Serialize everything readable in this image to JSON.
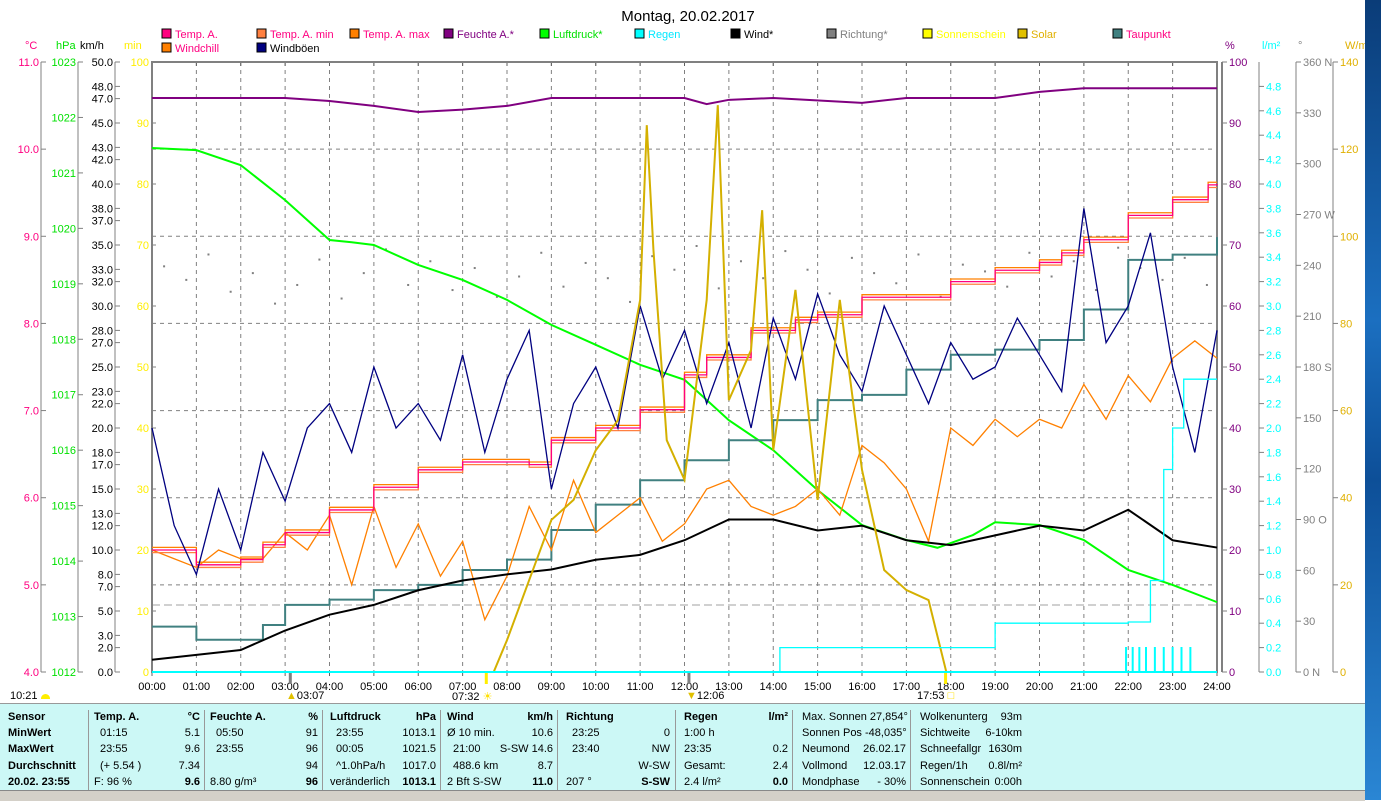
{
  "title": "Montag, 20.02.2017",
  "legend": [
    {
      "label": "Temp. A.",
      "swatch": "#ff0080",
      "text": "#ff0080"
    },
    {
      "label": "Temp. A. min",
      "swatch": "#ff8040",
      "text": "#ff0080"
    },
    {
      "label": "Temp. A. max",
      "swatch": "#ff8000",
      "text": "#ff0080"
    },
    {
      "label": "Feuchte A.*",
      "swatch": "#800080",
      "text": "#800080"
    },
    {
      "label": "Luftdruck*",
      "swatch": "#00ff00",
      "text": "#00e000"
    },
    {
      "label": "Regen",
      "swatch": "#00ffff",
      "text": "#00e8ff"
    },
    {
      "label": "Wind*",
      "swatch": "#000000",
      "text": "#000000"
    },
    {
      "label": "Richtung*",
      "swatch": "#808080",
      "text": "#808080"
    },
    {
      "label": "Sonnenschein",
      "swatch": "#ffff00",
      "text": "#ffff00"
    },
    {
      "label": "Solar",
      "swatch": "#e0c000",
      "text": "#e0b000"
    },
    {
      "label": "Taupunkt",
      "swatch": "#408080",
      "text": "#ff0080"
    },
    {
      "label": "Windchill",
      "swatch": "#ff8000",
      "text": "#ff0080"
    },
    {
      "label": "Windböen",
      "swatch": "#000080",
      "text": "#000000"
    }
  ],
  "chart_data": {
    "type": "line",
    "title": "Montag, 20.02.2017",
    "xlabel": "",
    "xlim": [
      0,
      24
    ],
    "x_ticks": [
      "00:00",
      "01:00",
      "02:00",
      "03:00",
      "04:00",
      "05:00",
      "06:00",
      "07:00",
      "08:00",
      "09:00",
      "10:00",
      "11:00",
      "12:00",
      "13:00",
      "14:00",
      "15:00",
      "16:00",
      "17:00",
      "18:00",
      "19:00",
      "20:00",
      "21:00",
      "22:00",
      "23:00",
      "24:00"
    ],
    "grid": true,
    "axes": {
      "C": {
        "unit": "°C",
        "range": [
          4,
          11
        ],
        "ticks": [
          "4.0",
          "5.0",
          "6.0",
          "7.0",
          "8.0",
          "9.0",
          "10.0",
          "11.0"
        ],
        "color": "#ff0080"
      },
      "hPa": {
        "unit": "hPa",
        "range": [
          1012,
          1023
        ],
        "ticks": [
          "1012",
          "1013",
          "1014",
          "1015",
          "1016",
          "1017",
          "1018",
          "1019",
          "1020",
          "1021",
          "1022",
          "1023"
        ],
        "color": "#00e000"
      },
      "kmh": {
        "unit": "km/h",
        "range": [
          0,
          50
        ],
        "ticks": [
          "0.0",
          "2.0",
          "3.0",
          "5.0",
          "7.0",
          "8.0",
          "10.0",
          "12.0",
          "13.0",
          "15.0",
          "17.0",
          "18.0",
          "20.0",
          "22.0",
          "23.0",
          "25.0",
          "27.0",
          "28.0",
          "30.0",
          "32.0",
          "33.0",
          "35.0",
          "37.0",
          "38.0",
          "40.0",
          "42.0",
          "43.0",
          "45.0",
          "47.0",
          "48.0",
          "50.0"
        ],
        "color": "#000000"
      },
      "min": {
        "unit": "min",
        "range": [
          0,
          100
        ],
        "ticks": [
          "0",
          "10",
          "20",
          "30",
          "40",
          "50",
          "60",
          "70",
          "80",
          "90",
          "100"
        ],
        "color": "#ffff00"
      },
      "pct": {
        "unit": "%",
        "range": [
          0,
          100
        ],
        "ticks": [
          "0",
          "10",
          "20",
          "30",
          "40",
          "50",
          "60",
          "70",
          "80",
          "90",
          "100"
        ],
        "color": "#800080"
      },
      "rain": {
        "unit": "l/m²",
        "range": [
          0,
          5
        ],
        "ticks": [
          "0.0",
          "0.2",
          "0.4",
          "0.6",
          "0.8",
          "1.0",
          "1.2",
          "1.4",
          "1.6",
          "1.8",
          "2.0",
          "2.2",
          "2.4",
          "2.6",
          "2.8",
          "3.0",
          "3.2",
          "3.4",
          "3.6",
          "3.8",
          "4.0",
          "4.2",
          "4.4",
          "4.6",
          "4.8"
        ],
        "color": "#00ffff"
      },
      "deg": {
        "unit": "°",
        "range": [
          0,
          360
        ],
        "ticks": [
          "0   N",
          "30",
          "60",
          "90  O",
          "120",
          "150",
          "180 S",
          "210",
          "240",
          "270 W",
          "300",
          "330",
          "360 N"
        ],
        "color": "#808080"
      },
      "wm2": {
        "unit": "W/m²",
        "range": [
          0,
          140
        ],
        "ticks": [
          "0",
          "20",
          "40",
          "60",
          "80",
          "100",
          "120",
          "140"
        ],
        "color": "#e0b000"
      }
    },
    "series": [
      {
        "name": "Luftdruck*",
        "axis": "hPa",
        "color": "#00ff00",
        "x": [
          0,
          1,
          2,
          3,
          4,
          4.5,
          5,
          6,
          7,
          8,
          9,
          10,
          11,
          12,
          13,
          14,
          15,
          16,
          17,
          17.7,
          18.5,
          19,
          20,
          21,
          22,
          23,
          24
        ],
        "values": [
          1021.45,
          1021.41,
          1021.14,
          1020.51,
          1019.79,
          1019.75,
          1019.7,
          1019.34,
          1019.07,
          1018.71,
          1018.26,
          1017.9,
          1017.54,
          1017.27,
          1016.54,
          1016.0,
          1015.28,
          1014.65,
          1014.38,
          1014.24,
          1014.47,
          1014.7,
          1014.65,
          1014.38,
          1013.84,
          1013.57,
          1013.26
        ]
      },
      {
        "name": "Feuchte A.*",
        "axis": "pct",
        "color": "#800080",
        "x": [
          0,
          3,
          4,
          5,
          6,
          7,
          8,
          9,
          12,
          12.5,
          13,
          14,
          16,
          17,
          19,
          20,
          21,
          24
        ],
        "values": [
          94.1,
          94.1,
          93.6,
          92.8,
          91.8,
          92.2,
          92.8,
          94.1,
          94.1,
          93.1,
          93.8,
          94.1,
          93.3,
          94.1,
          94.1,
          95.1,
          95.7,
          95.7
        ]
      },
      {
        "name": "Taupunkt",
        "axis": "C",
        "color": "#408080",
        "step": true,
        "x": [
          0,
          1,
          2,
          2.5,
          3,
          4,
          5,
          6,
          7,
          8,
          9,
          10,
          11,
          12,
          13,
          14,
          15,
          16,
          17,
          18,
          19,
          20,
          21,
          22,
          23,
          24
        ],
        "values": [
          4.52,
          4.37,
          4.37,
          4.54,
          4.77,
          4.83,
          4.94,
          5.0,
          5.17,
          5.29,
          5.63,
          5.92,
          6.2,
          6.43,
          6.66,
          6.89,
          7.12,
          7.18,
          7.47,
          7.64,
          7.7,
          7.81,
          8.16,
          8.73,
          8.79,
          8.99
        ]
      },
      {
        "name": "Windchill",
        "axis": "C",
        "color": "#ff8000",
        "x": [
          0,
          0.5,
          1,
          1.5,
          2,
          2.5,
          3,
          3.5,
          4,
          4.5,
          5,
          5.5,
          6,
          6.5,
          7,
          7.5,
          8,
          8.5,
          9,
          9.5,
          10,
          10.5,
          11,
          11.5,
          12,
          12.5,
          13,
          13.5,
          14,
          14.5,
          15,
          15.5,
          16,
          16.5,
          17,
          17.5,
          18,
          18.5,
          19,
          19.5,
          20,
          20.5,
          21,
          21.5,
          22,
          22.5,
          23,
          23.5,
          24
        ],
        "values": [
          5.4,
          5.3,
          5.2,
          5.4,
          5.3,
          5.3,
          5.6,
          5.4,
          5.8,
          5.0,
          5.9,
          5.2,
          5.7,
          5.1,
          5.5,
          4.6,
          5.1,
          5.9,
          5.4,
          6.2,
          5.6,
          5.8,
          6.0,
          5.5,
          5.7,
          6.1,
          6.2,
          5.9,
          5.8,
          5.9,
          6.1,
          5.8,
          6.6,
          6.4,
          6.1,
          5.5,
          6.8,
          6.6,
          6.9,
          6.7,
          6.9,
          6.8,
          7.3,
          6.9,
          7.4,
          7.1,
          7.6,
          7.8,
          7.6
        ]
      },
      {
        "name": "Temp. A. min",
        "axis": "C",
        "color": "#ff8040",
        "step": true,
        "x": [
          0,
          1,
          1.5,
          2,
          2.5,
          3,
          4,
          5,
          6,
          7,
          7.5,
          8.5,
          9,
          10,
          11,
          12,
          12.5,
          13.5,
          14.5,
          15,
          16,
          17,
          18,
          19,
          20,
          20.5,
          21,
          22,
          23,
          23.8,
          24
        ],
        "values": [
          5.37,
          5.2,
          5.2,
          5.26,
          5.43,
          5.57,
          5.83,
          6.09,
          6.29,
          6.38,
          6.38,
          6.35,
          6.63,
          6.77,
          6.98,
          7.38,
          7.58,
          7.89,
          8.01,
          8.07,
          8.27,
          8.27,
          8.45,
          8.58,
          8.67,
          8.78,
          8.93,
          9.21,
          9.39,
          9.56,
          9.56
        ]
      },
      {
        "name": "Temp. A. max",
        "axis": "C",
        "color": "#ff8000",
        "step": true,
        "x": [
          0,
          1,
          1.5,
          2,
          2.5,
          3,
          4,
          5,
          6,
          7,
          7.5,
          8.5,
          9,
          10,
          11,
          12,
          12.5,
          13.5,
          14.5,
          15,
          16,
          17,
          18,
          19,
          20,
          20.5,
          21,
          22,
          23,
          23.8,
          24
        ],
        "values": [
          5.43,
          5.26,
          5.26,
          5.32,
          5.49,
          5.63,
          5.89,
          6.15,
          6.35,
          6.44,
          6.44,
          6.41,
          6.69,
          6.83,
          7.04,
          7.44,
          7.64,
          7.95,
          8.07,
          8.13,
          8.33,
          8.33,
          8.51,
          8.64,
          8.73,
          8.84,
          8.99,
          9.27,
          9.45,
          9.62,
          9.62
        ]
      },
      {
        "name": "Temp. A.",
        "axis": "C",
        "color": "#ff0080",
        "step": true,
        "x": [
          0,
          1,
          1.5,
          2,
          2.5,
          3,
          4,
          5,
          6,
          7,
          7.5,
          8.5,
          9,
          10,
          11,
          12,
          12.5,
          13.5,
          14.5,
          15,
          16,
          17,
          18,
          19,
          20,
          20.5,
          21,
          22,
          23,
          23.8,
          24
        ],
        "values": [
          5.4,
          5.23,
          5.23,
          5.29,
          5.46,
          5.6,
          5.86,
          6.12,
          6.32,
          6.41,
          6.41,
          6.38,
          6.66,
          6.8,
          7.01,
          7.41,
          7.61,
          7.92,
          8.04,
          8.1,
          8.3,
          8.3,
          8.48,
          8.61,
          8.7,
          8.81,
          8.96,
          9.24,
          9.42,
          9.59,
          9.6
        ]
      },
      {
        "name": "Windböen",
        "axis": "kmh",
        "color": "#000080",
        "x": [
          0,
          0.5,
          1,
          1.5,
          2,
          2.5,
          3,
          3.5,
          4,
          4.5,
          5,
          5.5,
          6,
          6.5,
          7,
          7.5,
          8,
          8.5,
          9,
          9.5,
          10,
          10.5,
          11,
          11.5,
          12,
          12.5,
          13,
          13.5,
          14,
          14.5,
          15,
          15.5,
          16,
          16.5,
          17,
          17.5,
          18,
          18.5,
          19,
          19.5,
          20,
          20.5,
          21,
          21.5,
          22,
          22.5,
          23,
          23.5,
          24
        ],
        "values": [
          20,
          12,
          8,
          15,
          10,
          18,
          14,
          20,
          22,
          18,
          25,
          20,
          22,
          19,
          26,
          18,
          24,
          28,
          15,
          22,
          25,
          20,
          30,
          24,
          28,
          22,
          27,
          20,
          29,
          24,
          31,
          26,
          23,
          30,
          26,
          22,
          27,
          24,
          25,
          29,
          26,
          23,
          38,
          27,
          30,
          36,
          25,
          18,
          28
        ]
      },
      {
        "name": "Wind*",
        "axis": "kmh",
        "color": "#000000",
        "x": [
          0,
          1,
          2,
          3,
          4,
          5,
          6,
          7,
          8,
          9,
          10,
          11,
          12,
          13,
          14,
          15,
          16,
          17,
          18,
          19,
          20,
          21,
          22,
          23,
          24
        ],
        "values": [
          1.0,
          1.4,
          1.8,
          3.4,
          4.7,
          5.5,
          6.7,
          7.5,
          8.0,
          8.4,
          9.2,
          9.6,
          10.8,
          12.5,
          12.5,
          11.6,
          12.0,
          10.8,
          10.4,
          11.2,
          12.0,
          11.6,
          13.3,
          10.8,
          10.2
        ]
      },
      {
        "name": "Solar",
        "axis": "wm2",
        "color": "#d4b000",
        "x": [
          0,
          7.7,
          8,
          8.5,
          9,
          9.5,
          10,
          10.5,
          11,
          11.15,
          11.3,
          11.6,
          12,
          12.5,
          12.75,
          13,
          13.5,
          13.75,
          14,
          14.5,
          15,
          15.5,
          16,
          16.5,
          17,
          17.5,
          17.9,
          24
        ],
        "values": [
          0,
          0,
          7.3,
          21.1,
          34.9,
          39.5,
          50.9,
          57.8,
          85.4,
          125.5,
          96.9,
          53.2,
          44.1,
          85.4,
          130.1,
          62.4,
          73.9,
          106,
          50.9,
          87.7,
          39.5,
          85.4,
          46.4,
          23.4,
          18.8,
          16.5,
          0,
          0
        ]
      },
      {
        "name": "Regen",
        "axis": "rain",
        "color": "#00ffff",
        "step": true,
        "x": [
          0,
          14.15,
          19,
          22,
          22.5,
          22.8,
          23,
          23.25,
          24
        ],
        "values": [
          0,
          0.2,
          0.4,
          0.41,
          0.75,
          1.66,
          2.0,
          2.4,
          2.4
        ]
      }
    ],
    "rain_bars_hours": [
      21.95,
      22.1,
      22.25,
      22.4,
      22.6,
      22.8,
      23.0,
      23.2,
      23.4
    ],
    "richtung_deg": [
      240,
      232,
      247,
      225,
      236,
      218,
      229,
      244,
      221,
      236,
      250,
      229,
      243,
      226,
      239,
      222,
      234,
      248,
      228,
      242,
      233,
      219,
      246,
      238,
      252,
      227,
      243,
      233,
      249,
      238,
      224,
      245,
      236,
      230,
      247,
      222,
      241,
      237,
      228,
      248,
      234,
      243,
      226,
      251,
      239,
      232,
      245,
      229
    ]
  },
  "sun_markers": {
    "moon": "10:21",
    "m1": "03:07",
    "sunrise": "07:32",
    "noon": "12:06",
    "sunset": "17:53"
  },
  "table": {
    "sensor": [
      "Sensor",
      "MinWert",
      "MaxWert",
      "Durchschnitt",
      "20.02. 23:55"
    ],
    "temp": {
      "head": "Temp. A.",
      "unit": "°C",
      "a": [
        "01:15",
        "23:55",
        "(+ 5.54 )",
        "F: 96 %"
      ],
      "b": [
        "5.1",
        "9.6",
        "7.34",
        "9.6"
      ]
    },
    "feuchte": {
      "head": "Feuchte A.",
      "unit": "%",
      "a": [
        "05:50",
        "23:55",
        "",
        "8.80 g/m³"
      ],
      "b": [
        "91",
        "96",
        "94",
        "96"
      ]
    },
    "luft": {
      "head": "Luftdruck",
      "unit": "hPa",
      "a": [
        "23:55",
        "00:05",
        "^1.0hPa/h",
        "veränderlich"
      ],
      "b": [
        "1013.1",
        "1021.5",
        "1017.0",
        "1013.1"
      ]
    },
    "wind": {
      "head": "Wind",
      "unit": "km/h",
      "a": [
        "Ø 10 min.",
        "21:00",
        "488.6 km",
        "2 Bft S-SW"
      ],
      "b": [
        "10.6",
        "S-SW 14.6",
        "8.7",
        "11.0"
      ]
    },
    "richtung": {
      "head": "Richtung",
      "unit": "",
      "a": [
        "23:25",
        "23:40",
        "",
        "207 °"
      ],
      "b": [
        "0",
        "NW",
        "W-SW",
        "S-SW"
      ]
    },
    "regen": {
      "head": "Regen",
      "unit": "l/m²",
      "a": [
        "1:00 h",
        "23:35",
        "Gesamt:",
        "2.4 l/m²"
      ],
      "b": [
        "",
        "0.2",
        "2.4",
        "0.0"
      ]
    },
    "sonne": {
      "a": [
        "Max. Sonnen 27,854°",
        "Sonnen Pos  -48,035°",
        "Neumond",
        "Vollmond",
        "Mondphase"
      ],
      "b": [
        "",
        "",
        "26.02.17",
        "12.03.17",
        "- 30%"
      ]
    },
    "wolken": {
      "a": [
        "Wolkenunterg",
        "Sichtweite",
        "Schneefallgr",
        "Regen/1h",
        "Sonnenschein"
      ],
      "b": [
        "93m",
        "6-10km",
        "1630m",
        "0.8l/m²",
        "0:00h"
      ]
    }
  }
}
